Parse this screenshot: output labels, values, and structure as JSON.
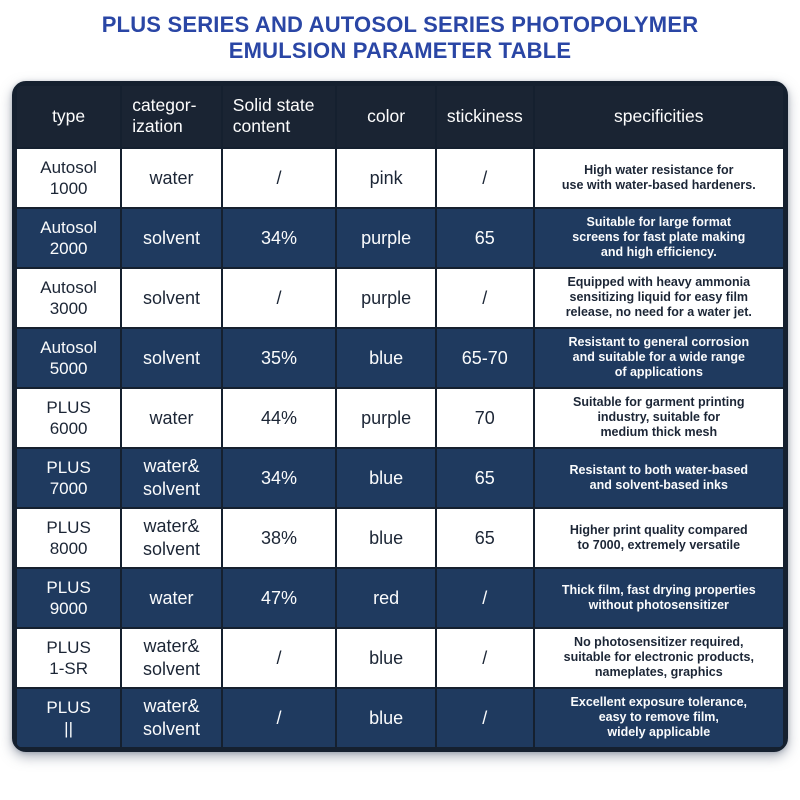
{
  "title": "PLUS SERIES AND AUTOSOL SERIES PHOTOPOLYMER\nEMULSION PARAMETER TABLE",
  "colors": {
    "title_color": "#2a46a5",
    "header_bg": "#1a2433",
    "row_dark_bg": "#1f3a5f",
    "row_light_bg": "#ffffff",
    "border_color": "#15202f",
    "text_dark": "#1c2636"
  },
  "table": {
    "columns": [
      "type",
      "categor-\nization",
      "Solid state\ncontent",
      "color",
      "stickiness",
      "specificities"
    ],
    "rows": [
      {
        "type": "Autosol\n1000",
        "categorization": "water",
        "solid": "/",
        "color": "pink",
        "stickiness": "/",
        "specificities": "High water resistance for\nuse with water-based hardeners."
      },
      {
        "type": "Autosol\n2000",
        "categorization": "solvent",
        "solid": "34%",
        "color": "purple",
        "stickiness": "65",
        "specificities": "Suitable for large format\nscreens for fast plate making\nand high efficiency."
      },
      {
        "type": "Autosol\n3000",
        "categorization": "solvent",
        "solid": "/",
        "color": "purple",
        "stickiness": "/",
        "specificities": "Equipped with heavy ammonia\nsensitizing liquid for easy film\nrelease, no need for a water jet."
      },
      {
        "type": "Autosol\n5000",
        "categorization": "solvent",
        "solid": "35%",
        "color": "blue",
        "stickiness": "65-70",
        "specificities": "Resistant to general corrosion\nand suitable for a wide range\nof applications"
      },
      {
        "type": "PLUS\n6000",
        "categorization": "water",
        "solid": "44%",
        "color": "purple",
        "stickiness": "70",
        "specificities": "Suitable for garment printing\nindustry, suitable for\nmedium thick mesh"
      },
      {
        "type": "PLUS\n7000",
        "categorization": "water&\nsolvent",
        "solid": "34%",
        "color": "blue",
        "stickiness": "65",
        "specificities": "Resistant to both water-based\nand solvent-based inks"
      },
      {
        "type": "PLUS\n8000",
        "categorization": "water&\nsolvent",
        "solid": "38%",
        "color": "blue",
        "stickiness": "65",
        "specificities": "Higher print quality compared\nto 7000, extremely versatile"
      },
      {
        "type": "PLUS\n9000",
        "categorization": "water",
        "solid": "47%",
        "color": "red",
        "stickiness": "/",
        "specificities": "Thick film, fast drying properties\nwithout photosensitizer"
      },
      {
        "type": "PLUS\n1-SR",
        "categorization": "water&\nsolvent",
        "solid": "/",
        "color": "blue",
        "stickiness": "/",
        "specificities": "No photosensitizer required,\nsuitable for electronic products,\nnameplates, graphics"
      },
      {
        "type": "PLUS\n||",
        "categorization": "water&\nsolvent",
        "solid": "/",
        "color": "blue",
        "stickiness": "/",
        "specificities": "Excellent exposure tolerance,\neasy to remove film,\nwidely applicable"
      }
    ]
  }
}
